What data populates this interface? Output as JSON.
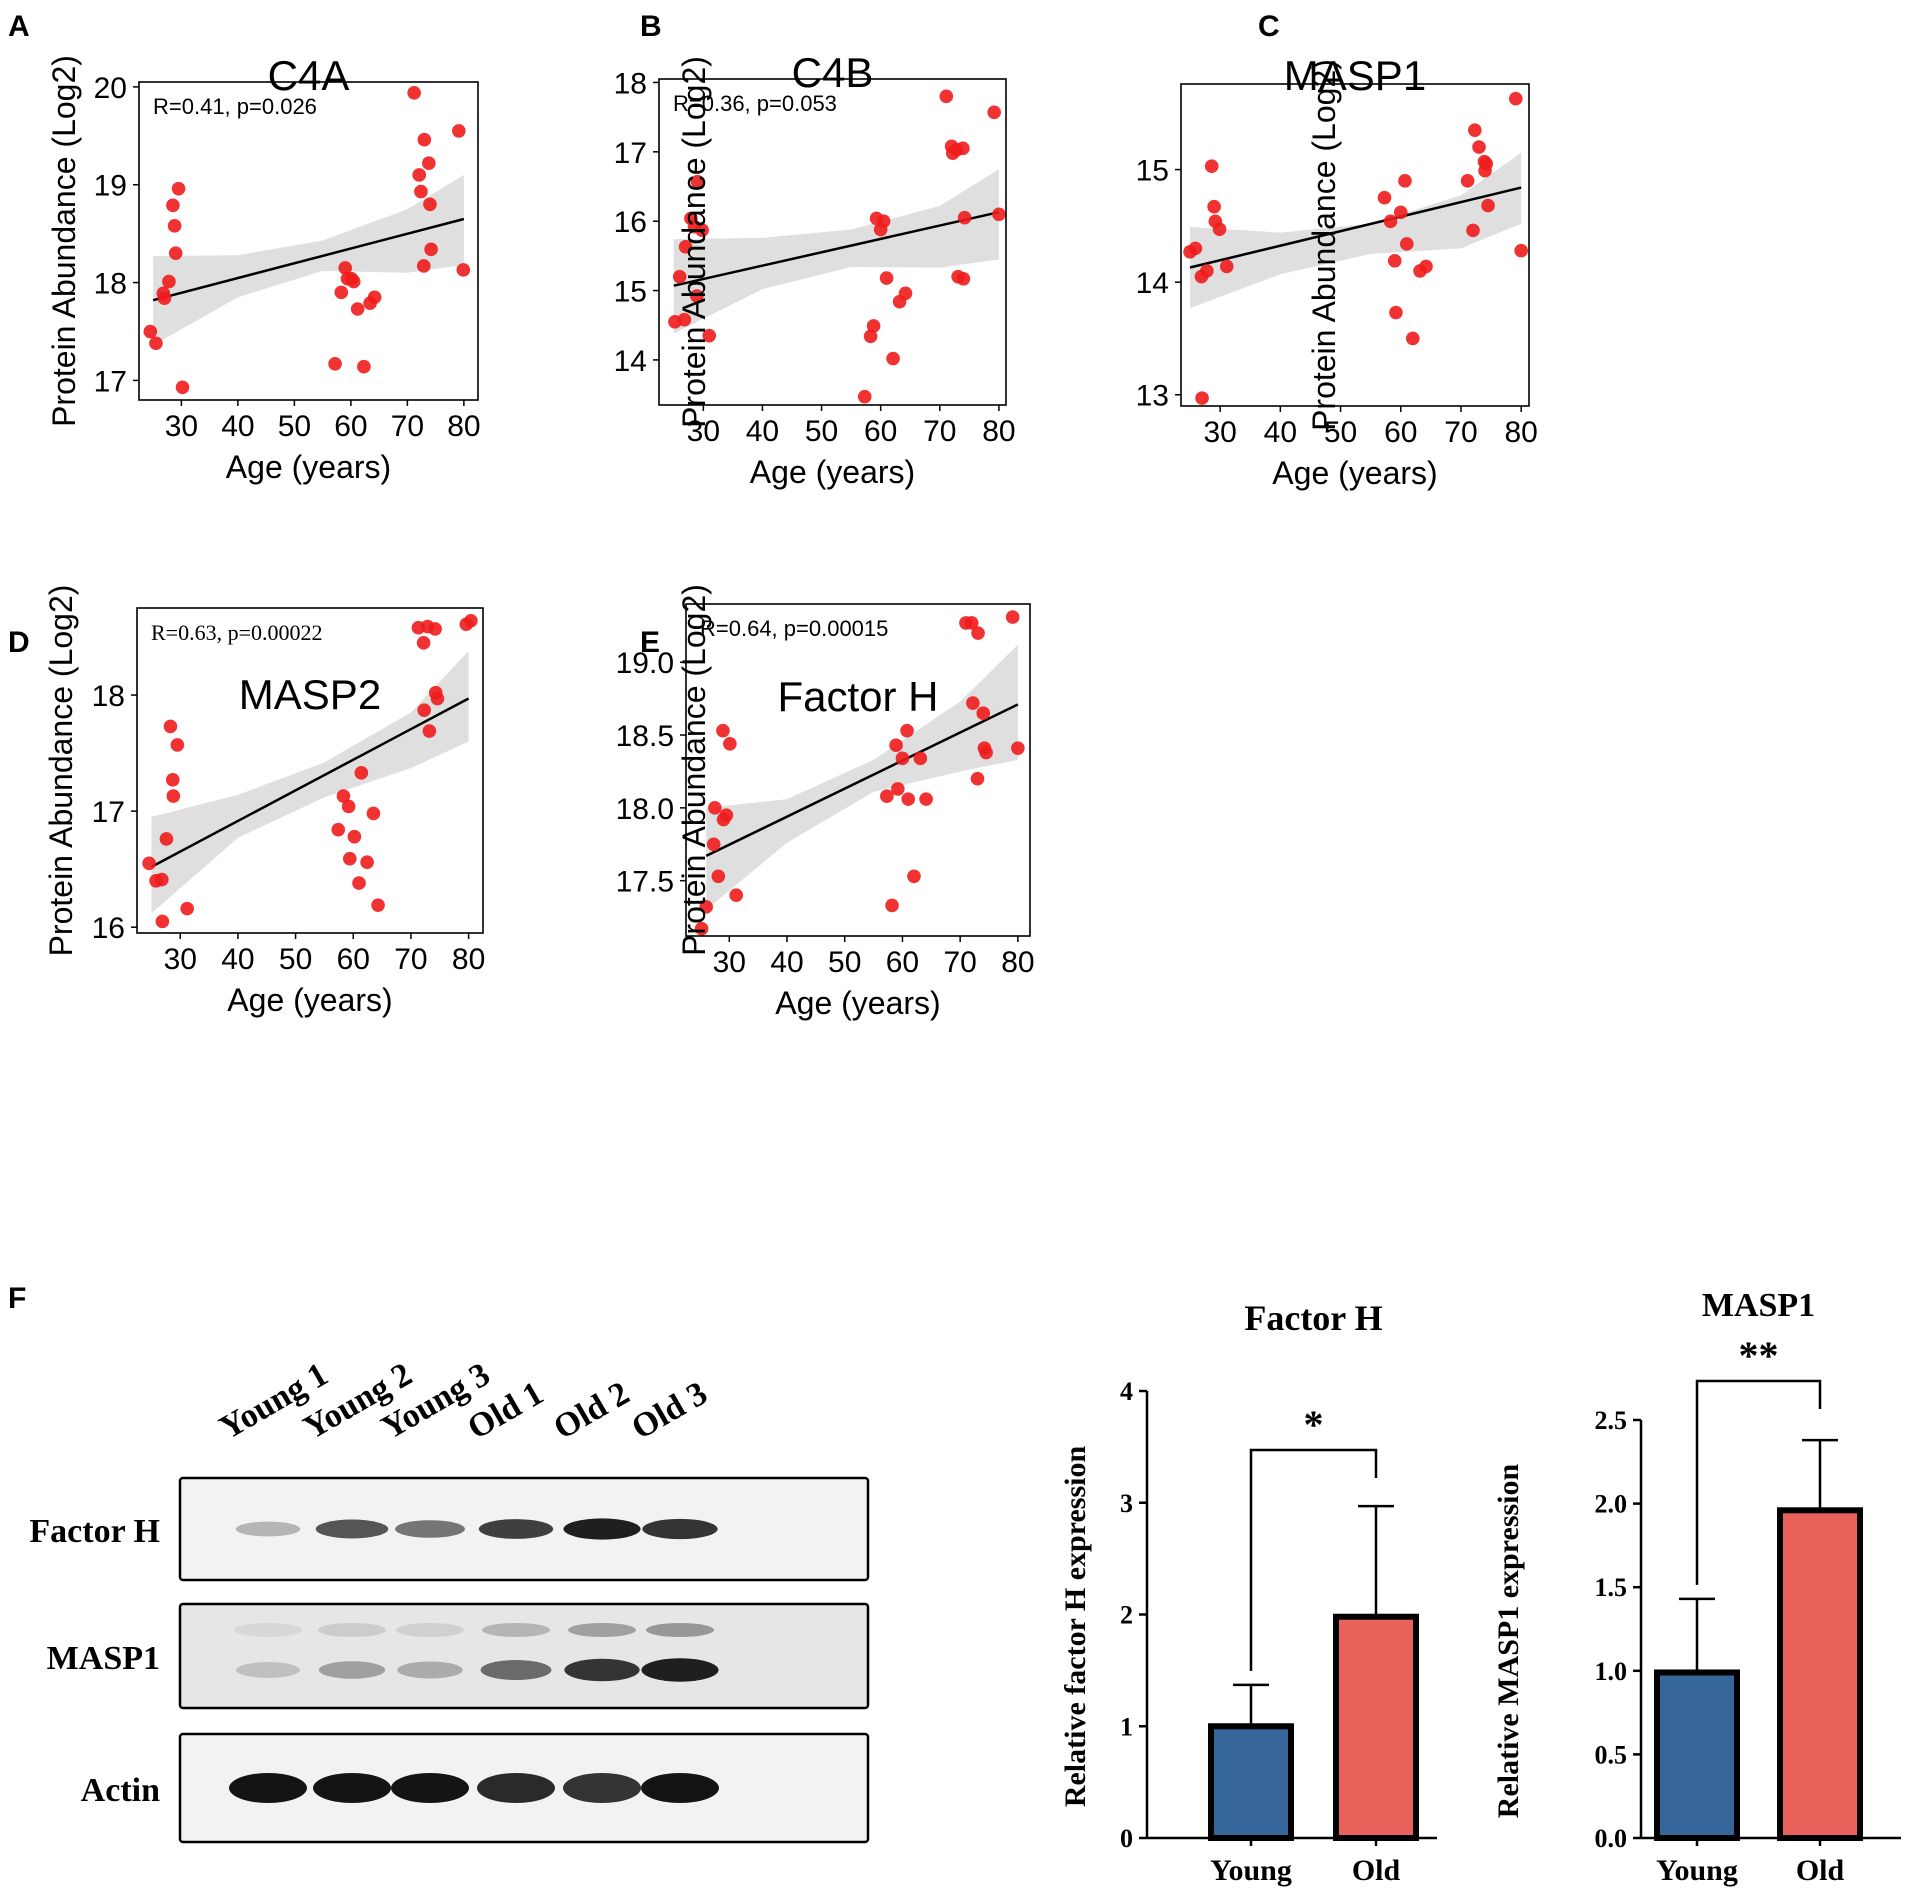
{
  "panel_letters": [
    "A",
    "B",
    "C",
    "D",
    "E",
    "F"
  ],
  "colors": {
    "point": "#ee1c1c",
    "ci_band": "#d9d9d9",
    "fit_line": "#000000",
    "young_bar": "#37669b",
    "old_bar": "#e8615a"
  },
  "chart_data": [
    {
      "id": "A",
      "type": "scatter",
      "title": "C4A",
      "xlabel": "Age (years)",
      "ylabel": "Protein Abundance (Log2)",
      "annotation": "R=0.41, p=0.026",
      "xlim": [
        22.5,
        82.5
      ],
      "ylim": [
        16.8,
        20.05
      ],
      "xticks": [
        30,
        40,
        50,
        60,
        70,
        80
      ],
      "yticks": [
        17,
        18,
        19,
        20
      ],
      "fit": {
        "x1": 25,
        "y1": 17.82,
        "x2": 80,
        "y2": 18.65
      },
      "ci": [
        [
          25,
          18.27,
          17.36
        ],
        [
          40,
          18.28,
          17.85
        ],
        [
          55,
          18.43,
          18.12
        ],
        [
          70,
          18.75,
          18.1
        ],
        [
          80,
          19.1,
          18.18
        ]
      ],
      "x": [
        24.5,
        25.5,
        26.8,
        27.0,
        27.8,
        28.5,
        28.8,
        29.0,
        29.5,
        30.2,
        57.2,
        58.3,
        59.0,
        59.4,
        60.1,
        60.5,
        61.2,
        62.3,
        63.4,
        64.2,
        71.2,
        72.1,
        72.4,
        72.9,
        73.0,
        73.8,
        74.0,
        74.2,
        79.1,
        79.9
      ],
      "y": [
        17.5,
        17.38,
        17.89,
        17.84,
        18.01,
        18.79,
        18.58,
        18.3,
        18.96,
        16.93,
        17.17,
        17.9,
        18.15,
        18.04,
        18.04,
        18.01,
        17.73,
        17.14,
        17.79,
        17.85,
        19.94,
        19.1,
        18.93,
        18.17,
        19.46,
        19.22,
        18.8,
        18.34,
        19.55,
        18.13
      ]
    },
    {
      "id": "B",
      "type": "scatter",
      "title": "C4B",
      "xlabel": "Age (years)",
      "ylabel": "Protein Abundance (Log2)",
      "annotation": "R=0.36, p=0.053",
      "xlim": [
        22.5,
        81.2
      ],
      "ylim": [
        13.35,
        18.05
      ],
      "xticks": [
        30,
        40,
        50,
        60,
        70,
        80
      ],
      "yticks": [
        14,
        15,
        16,
        17,
        18
      ],
      "fit": {
        "x1": 25,
        "y1": 15.07,
        "x2": 80,
        "y2": 16.13
      },
      "ci": [
        [
          25,
          15.74,
          14.38
        ],
        [
          40,
          15.76,
          15.02
        ],
        [
          55,
          15.88,
          15.34
        ],
        [
          70,
          16.22,
          15.33
        ],
        [
          80,
          16.75,
          15.45
        ]
      ],
      "x": [
        25.2,
        26.0,
        26.8,
        27.0,
        27.9,
        28.5,
        28.9,
        29.0,
        29.8,
        31.0,
        57.3,
        58.3,
        58.8,
        59.3,
        60.0,
        60.5,
        61.0,
        62.1,
        63.2,
        64.2,
        71.1,
        72.0,
        72.2,
        72.9,
        73.1,
        73.9,
        74.0,
        74.2,
        79.2,
        80.0
      ],
      "y": [
        14.55,
        15.2,
        14.58,
        15.63,
        16.04,
        15.92,
        14.92,
        16.57,
        15.87,
        14.35,
        13.47,
        14.34,
        14.49,
        16.04,
        15.88,
        16.0,
        15.18,
        14.02,
        14.84,
        14.96,
        17.8,
        17.08,
        16.98,
        17.03,
        15.2,
        17.05,
        15.17,
        16.05,
        17.57,
        16.1
      ]
    },
    {
      "id": "C",
      "type": "scatter",
      "title": "MASP1",
      "xlabel": "Age (years)",
      "ylabel": "Protein Abundance (Log2)",
      "annotation": "",
      "xlim": [
        23.5,
        81.3
      ],
      "ylim": [
        12.9,
        15.76
      ],
      "xticks": [
        30,
        40,
        50,
        60,
        70,
        80
      ],
      "yticks": [
        13,
        14,
        15
      ],
      "fit": {
        "x1": 25,
        "y1": 14.13,
        "x2": 80,
        "y2": 14.84
      },
      "ci": [
        [
          25,
          14.49,
          13.77
        ],
        [
          40,
          14.44,
          14.07
        ],
        [
          55,
          14.52,
          14.25
        ],
        [
          70,
          14.77,
          14.3
        ],
        [
          80,
          15.15,
          14.52
        ]
      ],
      "x": [
        25.0,
        25.9,
        26.9,
        27.0,
        27.8,
        28.6,
        29.0,
        29.2,
        29.9,
        31.1,
        57.3,
        58.3,
        59.0,
        59.2,
        60.0,
        60.7,
        61.0,
        62.0,
        63.2,
        64.2,
        71.1,
        72.0,
        72.3,
        73.0,
        73.9,
        74.0,
        74.2,
        74.5,
        79.1,
        80.0
      ],
      "y": [
        14.27,
        14.3,
        14.05,
        12.97,
        14.1,
        15.03,
        14.67,
        14.54,
        14.47,
        14.14,
        14.75,
        14.54,
        14.19,
        13.73,
        14.62,
        14.9,
        14.34,
        13.5,
        14.1,
        14.14,
        14.9,
        14.46,
        15.35,
        15.2,
        15.07,
        14.99,
        15.05,
        14.68,
        15.63,
        14.28
      ]
    },
    {
      "id": "D",
      "type": "scatter",
      "title": "MASP2",
      "xlabel": "Age (years)",
      "ylabel": "Protein Abundance (Log2)",
      "annotation": "R=0.63, p=0.00022",
      "xlim": [
        22.5,
        82.5
      ],
      "ylim": [
        15.95,
        18.75
      ],
      "xticks": [
        30,
        40,
        50,
        60,
        70,
        80
      ],
      "yticks": [
        16,
        17,
        18
      ],
      "fit": {
        "x1": 25,
        "y1": 16.52,
        "x2": 80,
        "y2": 17.97
      },
      "ci": [
        [
          25,
          16.95,
          16.12
        ],
        [
          40,
          17.14,
          16.77
        ],
        [
          55,
          17.42,
          17.12
        ],
        [
          70,
          17.85,
          17.37
        ],
        [
          80,
          18.38,
          17.6
        ]
      ],
      "x": [
        24.6,
        25.8,
        26.8,
        26.9,
        27.6,
        28.3,
        28.7,
        28.8,
        29.5,
        31.2,
        57.4,
        58.3,
        59.2,
        59.4,
        60.2,
        61.0,
        61.4,
        62.4,
        63.5,
        64.3,
        71.3,
        72.2,
        72.3,
        72.9,
        73.2,
        74.2,
        74.3,
        74.6,
        79.6,
        80.4
      ],
      "y": [
        16.55,
        16.4,
        16.41,
        16.05,
        16.76,
        17.73,
        17.27,
        17.13,
        17.57,
        16.16,
        16.84,
        17.13,
        17.04,
        16.59,
        16.78,
        16.38,
        17.33,
        16.56,
        16.98,
        16.19,
        18.58,
        18.45,
        17.87,
        18.59,
        17.69,
        18.57,
        18.02,
        17.97,
        18.61,
        18.64
      ]
    },
    {
      "id": "E",
      "type": "scatter",
      "title": "Factor H",
      "xlabel": "Age (years)",
      "ylabel": "Protein Abundance (Log2)",
      "annotation": "R=0.64, p=0.00015",
      "xlim": [
        22.5,
        82.1
      ],
      "ylim": [
        17.12,
        19.4
      ],
      "xticks": [
        30,
        40,
        50,
        60,
        70,
        80
      ],
      "yticks": [
        17.5,
        18.0,
        18.5,
        19.0
      ],
      "fit": {
        "x1": 26,
        "y1": 17.67,
        "x2": 80,
        "y2": 18.71
      },
      "ci": [
        [
          26,
          18.0,
          17.3
        ],
        [
          40,
          18.06,
          17.76
        ],
        [
          55,
          18.33,
          18.11
        ],
        [
          70,
          18.73,
          18.25
        ],
        [
          80,
          19.12,
          18.33
        ]
      ],
      "x": [
        25.2,
        26.0,
        27.3,
        27.5,
        28.1,
        28.9,
        29.0,
        29.5,
        30.1,
        31.2,
        57.3,
        58.2,
        58.9,
        59.2,
        60.0,
        60.8,
        61.0,
        62.0,
        63.1,
        64.1,
        71.0,
        72.0,
        72.2,
        73.0,
        73.1,
        74.0,
        74.2,
        74.5,
        79.1,
        80.0
      ],
      "y": [
        17.17,
        17.32,
        17.75,
        18.0,
        17.53,
        18.53,
        17.92,
        17.95,
        18.44,
        17.4,
        18.08,
        17.33,
        18.43,
        18.13,
        18.34,
        18.53,
        18.06,
        17.53,
        18.34,
        18.06,
        19.27,
        19.27,
        18.72,
        18.2,
        19.2,
        18.65,
        18.41,
        18.38,
        19.31,
        18.41
      ]
    },
    {
      "id": "F-factorH",
      "type": "bar",
      "title": "Factor H",
      "ylabel": "Relative factor H expression",
      "categories": [
        "Young",
        "Old"
      ],
      "values": [
        1.0,
        1.98
      ],
      "errors": [
        0.37,
        0.99
      ],
      "ylim": [
        0,
        4
      ],
      "yticks": [
        "0",
        "1",
        "2",
        "3",
        "4"
      ],
      "significance": "*"
    },
    {
      "id": "F-MASP1",
      "type": "bar",
      "title": "MASP1",
      "ylabel": "Relative MASP1 expression",
      "categories": [
        "Young",
        "Old"
      ],
      "values": [
        0.99,
        1.96
      ],
      "errors": [
        0.44,
        0.42
      ],
      "ylim": [
        0,
        2.5
      ],
      "yticks": [
        "0.0",
        "0.5",
        "1.0",
        "1.5",
        "2.0",
        "2.5"
      ],
      "significance": "**"
    }
  ],
  "western_blot": {
    "lanes": [
      "Young 1",
      "Young 2",
      "Young 3",
      "Old 1",
      "Old 2",
      "Old 3"
    ],
    "rows": [
      {
        "label": "Factor H",
        "intensity": [
          0.25,
          0.7,
          0.55,
          0.8,
          0.95,
          0.85
        ]
      },
      {
        "label": "MASP1",
        "intensity": [
          0.2,
          0.35,
          0.3,
          0.6,
          0.85,
          0.95
        ]
      },
      {
        "label": "Actin",
        "intensity": [
          1.0,
          1.0,
          1.0,
          0.9,
          0.85,
          1.0
        ]
      }
    ]
  }
}
